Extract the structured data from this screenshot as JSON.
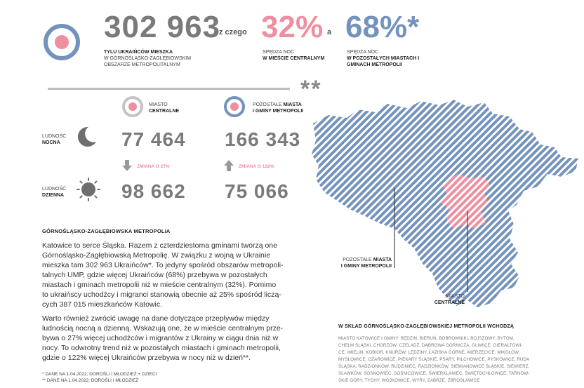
{
  "header": {
    "total": "302 963",
    "z_czego": "z czego",
    "pct_center": "32%",
    "conj_a": "a",
    "pct_other": "68%*",
    "total_caption_bold": "TYLU UKRAIŃCÓW MIESZKA",
    "total_caption_rest": "W GÓRNOŚLĄSKO-ZAGŁĘBIOWSKIM OBSZARZE METROPOLITALNYM",
    "center_caption_1": "SPĘDZA NOC",
    "center_caption_bold": "W MIEŚCIE CENTRALNYM",
    "other_caption_1": "SPĘDZA NOC",
    "other_caption_bold": "W POZOSTAŁYCH MIASTACH I GMINACH METROPOLII"
  },
  "divider": {
    "asterisks": "**"
  },
  "columns": {
    "center_label_1": "MIASTO",
    "center_label_bold": "CENTRALNE",
    "other_label_1": "POZOSTAŁE",
    "other_label_bold_1": "MIASTA",
    "other_label_bold_2": "I GMINY METROPOLII"
  },
  "rows": {
    "night_label_1": "LUDNOŚĆ",
    "night_label_bold": "NOCNA",
    "day_label_1": "LUDNOŚĆ",
    "day_label_bold": "DZIENNA",
    "night_center": "77 464",
    "night_other": "166 343",
    "day_center": "98 662",
    "day_other": "75 066",
    "change_center": "ZMIANA O 27%",
    "change_other": "ZMIANA O 122%"
  },
  "article": {
    "heading": "GÓRNOŚLĄSKO-ZAGŁĘBIOWSKA METROPOLIA",
    "p1_lines": [
      "Katowice to serce Śląska. Razem z czterdziestoma gminami tworzą one",
      "Górnośląsko-Zagłębiowską Metropolię. W związku z wojną w Ukrainie",
      "mieszka tam 302 963 Ukraińców*. To jedyny spośród obszarów metropoli-",
      "talnych UMP, gdzie więcej Ukraińców (68%) przebywa w pozostałych",
      "miastach i gminach metropolii niż w mieście centralnym (32%). Pomimo",
      "to ukraińscy uchodźcy i migranci stanowią obecnie aż 25% spośród liczą-",
      "cych 387 015 mieszkańców Katowic."
    ],
    "p2_lines": [
      "Warto również zwrócić uwagę na dane dotyczące przepływów między",
      "ludnością nocną a dzienną. Wskazują one, że w mieście centralnym prze-",
      "bywa o 27% więcej uchodźców i migrantów z Ukrainy w ciągu dnia niż w",
      "nocy. To odwrotny trend niż w pozostałych miastach i gminach metropolii,",
      "gdzie o 122% więcej Ukraińców przebywa w nocy niż w dzień**."
    ],
    "footnote1": "* DANE NA 1.04.2022; DOROŚLI I MŁODZIEŻ + DZIECI",
    "footnote2": "** DANE NA 1.04.2022; DOROŚLI I MŁODZIEŻ"
  },
  "map": {
    "label_other_1": "POZOSTAŁE",
    "label_other_bold_1": "MIASTA",
    "label_other_bold_2": "I GMINY METROPOLII",
    "label_center_1": "MIASTO",
    "label_center_bold": "CENTRALNE"
  },
  "members": {
    "heading": "W SKŁAD GÓRNOŚLĄSKO-ZAGŁĘBIOWSKIEJ METROPOLII WCHODZĄ",
    "lines": [
      "MIASTO KATOWICE I GMINY: BĘDZIN, BIERUŃ, BOBROWNIKI, BOJSZOWY, BYTOM,",
      "CHEŁM ŚLĄSKI, CHORZÓW, CZELADŹ, DĄBROWA GÓRNICZA, GLIWICE, GIERAŁTOWI-",
      "CE, IMIELIN, KOBIÓR, KNURÓW, LĘDZINY, ŁAZISKA GÓRNE, MIERZĘCICE, MIKOŁÓW,",
      "MYSŁOWICE, OŻAROWICE, PIEKARY ŚLĄSKIE, PSARY, PILCHOWICE, PYSKOWICE, RUDA",
      "ŚLĄSKA, RADZIONKÓW, RUDZINIEC, RADZIONKÓW, SIEMIANOWICE ŚLĄSKIE, SIEWIERZ,",
      "SŁAWKÓW, SOSNOWIEC, SOŚNICOWICE, ŚWIERKLANIEC, ŚWIĘTOCHŁOWICE, TARNOW-",
      "SKIE GÓRY, TYCHY, WOJKOWICE, WYRY, ZABRZE, ZBROSŁAWICE"
    ]
  },
  "colors": {
    "pink": "#ee8fa0",
    "blue": "#7393bd",
    "gray": "#7a7a7a"
  },
  "icons": [
    "target-icon",
    "moon-icon",
    "sun-icon",
    "arrow-down-icon",
    "arrow-up-icon"
  ]
}
